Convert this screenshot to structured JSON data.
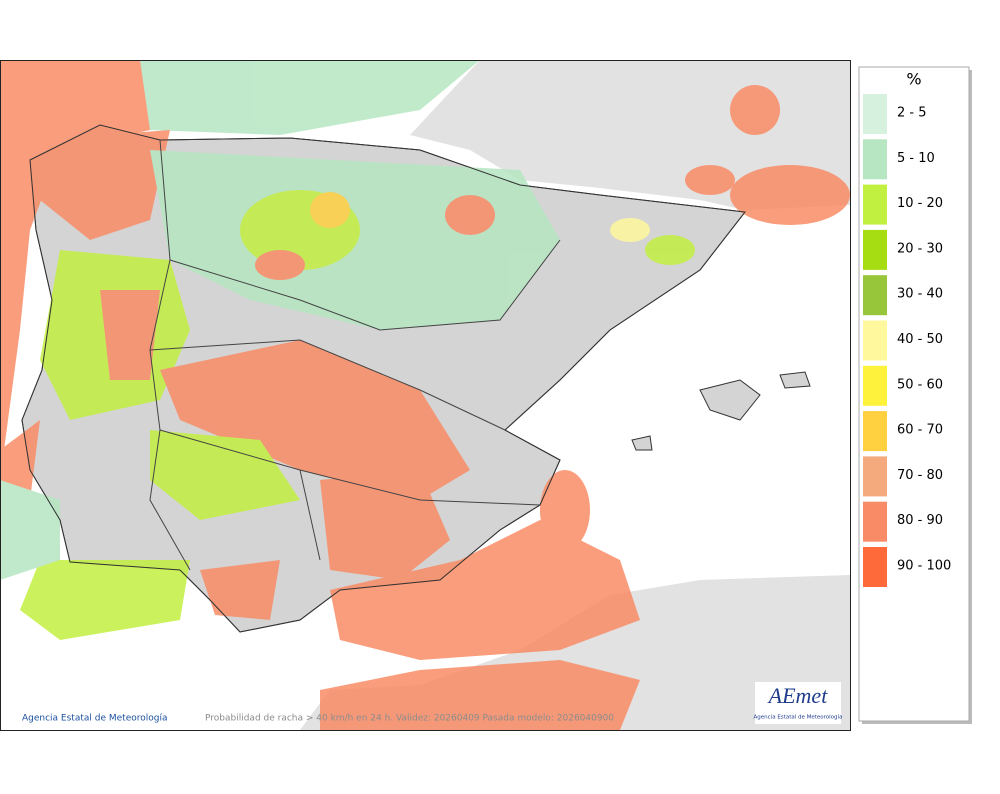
{
  "legend": {
    "title": "%",
    "items": [
      {
        "label": "2 - 5",
        "color": "#d6f2de"
      },
      {
        "label": "5 - 10",
        "color": "#b6e6c2"
      },
      {
        "label": "10 - 20",
        "color": "#c2f040"
      },
      {
        "label": "20 - 30",
        "color": "#a6dc12"
      },
      {
        "label": "30 - 40",
        "color": "#98c63a"
      },
      {
        "label": "40 - 50",
        "color": "#fff89c"
      },
      {
        "label": "50 - 60",
        "color": "#fff23c"
      },
      {
        "label": "60 - 70",
        "color": "#ffd040"
      },
      {
        "label": "70 - 80",
        "color": "#f4aa7c"
      },
      {
        "label": "80 - 90",
        "color": "#f98c66"
      },
      {
        "label": "90 - 100",
        "color": "#ff6a3a"
      }
    ]
  },
  "footer": {
    "credit": "Agencia Estatal de Meteorología",
    "caption": "Probabilidad de racha > 40 km/h en 24 h. Validez: 20260409 Pasada modelo: 2026040900"
  },
  "logo": {
    "name": "AEmet",
    "subtitle": "Agencia Estatal de Meteorología"
  }
}
